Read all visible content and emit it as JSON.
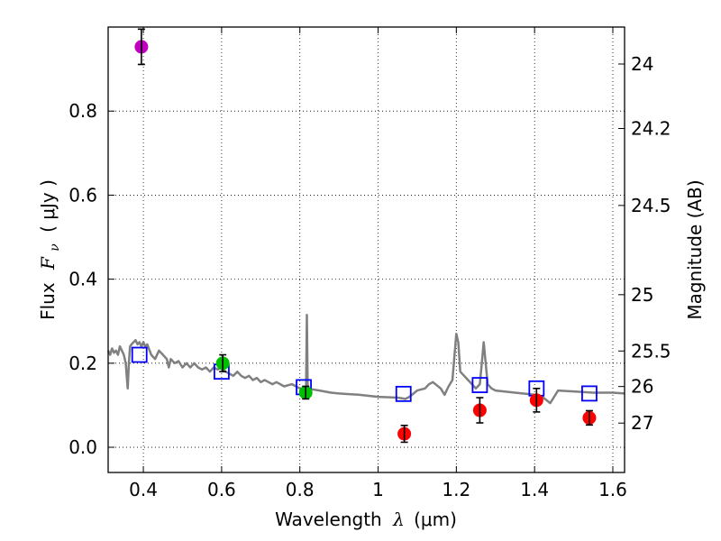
{
  "chart_data": {
    "type": "scatter",
    "xlabel_prefix": "Wavelength",
    "xlabel_symbol": "λ",
    "xlabel_unit": "(μm)",
    "ylabel_prefix": "Flux",
    "ylabel_symbol": "F",
    "ylabel_sub": "ν",
    "ylabel_unit": "( μJy )",
    "y2label": "Magnitude (AB)",
    "xlim": [
      0.31,
      1.63
    ],
    "ylim": [
      -0.06,
      1.0
    ],
    "grid": true,
    "x_ticks": [
      0.4,
      0.6,
      0.8,
      1.0,
      1.2,
      1.4,
      1.6
    ],
    "x_tick_labels": [
      "0.4",
      "0.6",
      "0.8",
      "1",
      "1.2",
      "1.4",
      "1.6"
    ],
    "y_ticks": [
      0.0,
      0.2,
      0.4,
      0.6,
      0.8
    ],
    "y_tick_labels": [
      "0.0",
      "0.2",
      "0.4",
      "0.6",
      "0.8"
    ],
    "y2_ticks": [
      {
        "label": "24",
        "mag": 24.0
      },
      {
        "label": "24.2",
        "mag": 24.2
      },
      {
        "label": "24.5",
        "mag": 24.5
      },
      {
        "label": "25",
        "mag": 25.0
      },
      {
        "label": "25.5",
        "mag": 25.5
      },
      {
        "label": "26",
        "mag": 26.0
      },
      {
        "label": "27",
        "mag": 27.0
      }
    ],
    "template_sed": {
      "name": "model spectrum",
      "color": "#808080",
      "x": [
        0.31,
        0.315,
        0.32,
        0.325,
        0.33,
        0.335,
        0.34,
        0.345,
        0.35,
        0.355,
        0.36,
        0.363,
        0.366,
        0.37,
        0.375,
        0.38,
        0.385,
        0.39,
        0.395,
        0.4,
        0.405,
        0.41,
        0.42,
        0.43,
        0.44,
        0.45,
        0.46,
        0.465,
        0.47,
        0.48,
        0.49,
        0.5,
        0.51,
        0.52,
        0.53,
        0.54,
        0.55,
        0.56,
        0.57,
        0.58,
        0.59,
        0.6,
        0.61,
        0.62,
        0.63,
        0.64,
        0.65,
        0.66,
        0.67,
        0.68,
        0.69,
        0.7,
        0.71,
        0.72,
        0.73,
        0.74,
        0.75,
        0.76,
        0.78,
        0.8,
        0.81,
        0.816,
        0.818,
        0.82,
        0.822,
        0.83,
        0.85,
        0.88,
        0.9,
        0.95,
        1.0,
        1.05,
        1.07,
        1.08,
        1.1,
        1.12,
        1.13,
        1.14,
        1.16,
        1.17,
        1.18,
        1.19,
        1.2,
        1.205,
        1.21,
        1.22,
        1.23,
        1.24,
        1.25,
        1.26,
        1.265,
        1.27,
        1.275,
        1.28,
        1.29,
        1.3,
        1.35,
        1.4,
        1.42,
        1.44,
        1.46,
        1.5,
        1.55,
        1.6,
        1.63
      ],
      "y": [
        0.23,
        0.22,
        0.235,
        0.225,
        0.23,
        0.22,
        0.24,
        0.23,
        0.22,
        0.2,
        0.14,
        0.2,
        0.24,
        0.245,
        0.25,
        0.255,
        0.245,
        0.25,
        0.24,
        0.25,
        0.24,
        0.245,
        0.22,
        0.21,
        0.23,
        0.22,
        0.21,
        0.19,
        0.21,
        0.2,
        0.205,
        0.19,
        0.2,
        0.19,
        0.2,
        0.19,
        0.185,
        0.19,
        0.18,
        0.19,
        0.185,
        0.19,
        0.18,
        0.175,
        0.17,
        0.18,
        0.17,
        0.165,
        0.17,
        0.16,
        0.165,
        0.155,
        0.16,
        0.155,
        0.15,
        0.155,
        0.15,
        0.145,
        0.15,
        0.14,
        0.14,
        0.14,
        0.315,
        0.14,
        0.14,
        0.138,
        0.135,
        0.13,
        0.128,
        0.125,
        0.12,
        0.118,
        0.115,
        0.12,
        0.135,
        0.14,
        0.15,
        0.155,
        0.14,
        0.125,
        0.145,
        0.16,
        0.27,
        0.25,
        0.18,
        0.17,
        0.16,
        0.15,
        0.14,
        0.15,
        0.2,
        0.25,
        0.2,
        0.15,
        0.14,
        0.135,
        0.13,
        0.125,
        0.12,
        0.105,
        0.135,
        0.133,
        0.13,
        0.13,
        0.128
      ]
    },
    "observed_points": [
      {
        "name": "purple point",
        "x": 0.395,
        "y": 0.953,
        "err": 0.042,
        "color": "#bf00bf"
      },
      {
        "name": "green point 1",
        "x": 0.603,
        "y": 0.2,
        "err": 0.02,
        "color": "#00bf00"
      },
      {
        "name": "green point 2",
        "x": 0.815,
        "y": 0.13,
        "err": 0.015,
        "color": "#00bf00"
      },
      {
        "name": "red point 1",
        "x": 1.067,
        "y": 0.032,
        "err": 0.02,
        "color": "#ff0000"
      },
      {
        "name": "red point 2",
        "x": 1.26,
        "y": 0.088,
        "err": 0.03,
        "color": "#ff0000"
      },
      {
        "name": "red point 3",
        "x": 1.405,
        "y": 0.112,
        "err": 0.028,
        "color": "#ff0000"
      },
      {
        "name": "red point 4",
        "x": 1.54,
        "y": 0.07,
        "err": 0.017,
        "color": "#ff0000"
      }
    ],
    "model_squares": [
      {
        "x": 0.39,
        "y": 0.22
      },
      {
        "x": 0.6,
        "y": 0.18
      },
      {
        "x": 0.81,
        "y": 0.143
      },
      {
        "x": 1.065,
        "y": 0.127
      },
      {
        "x": 1.26,
        "y": 0.148
      },
      {
        "x": 1.405,
        "y": 0.14
      },
      {
        "x": 1.54,
        "y": 0.128
      }
    ],
    "square_color": "#0000ff"
  }
}
